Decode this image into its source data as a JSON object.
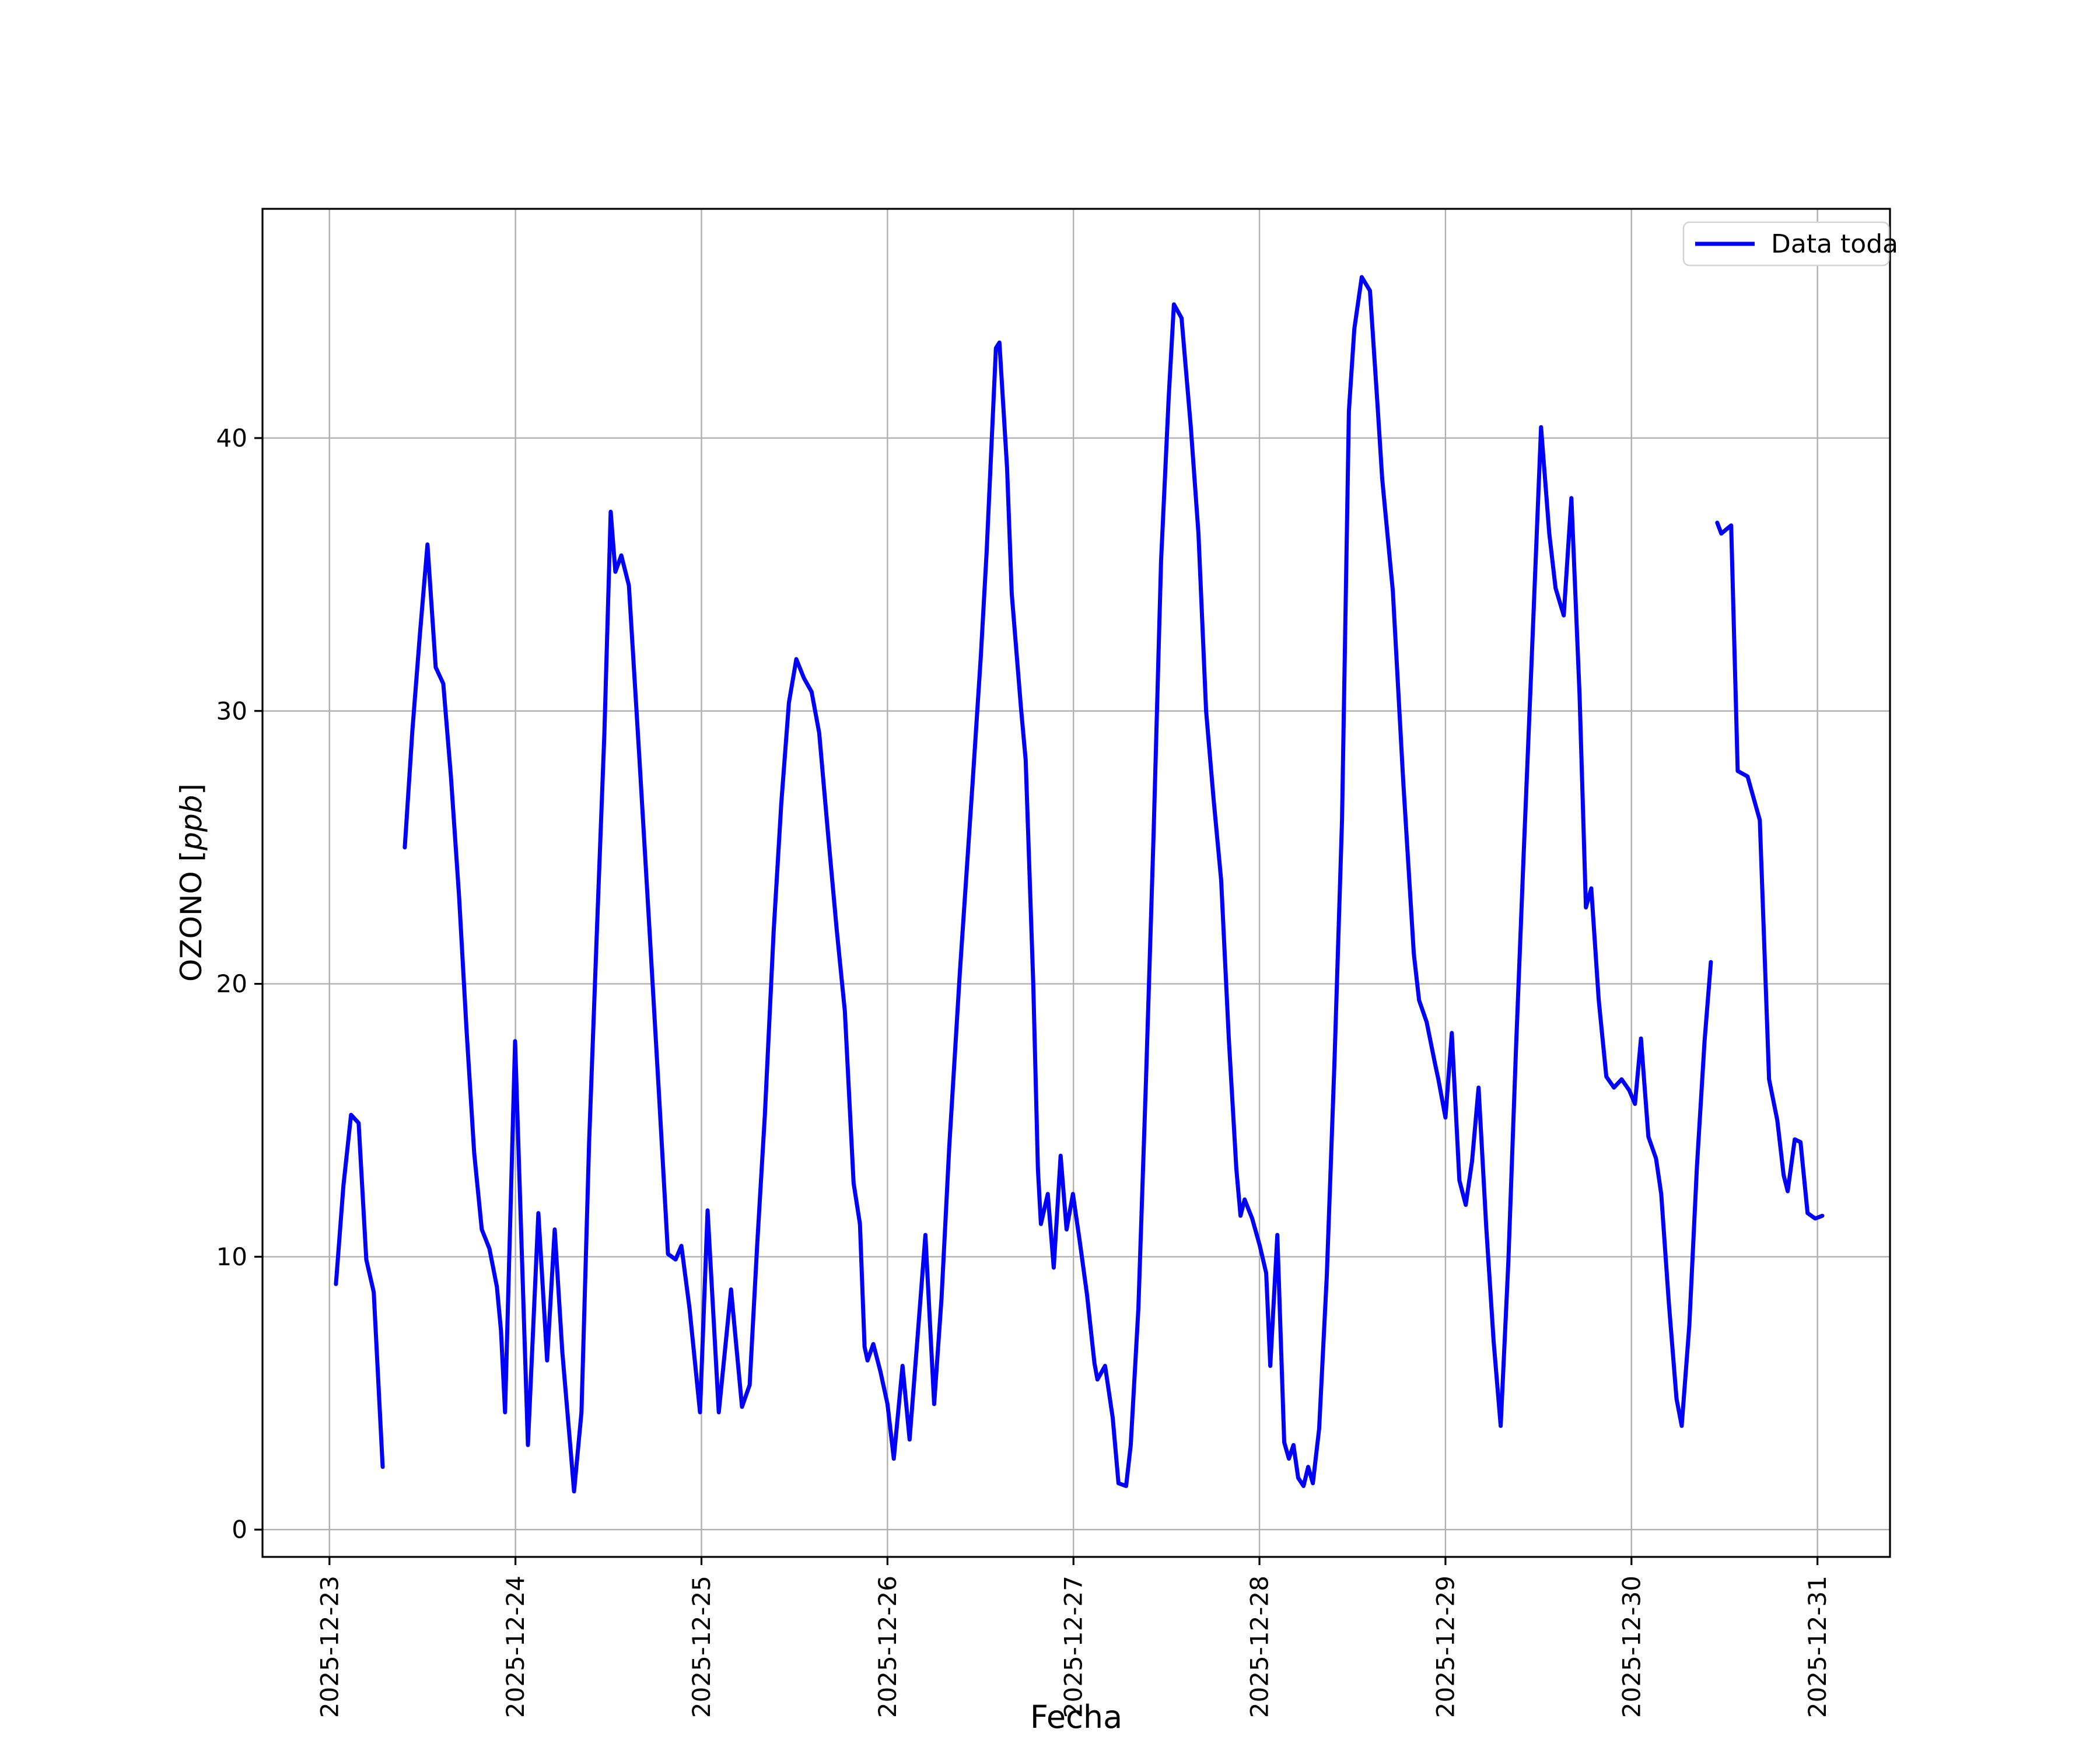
{
  "figure": {
    "background": "#ffffff",
    "legend": {
      "label": "Data toda",
      "line_color": "#0000ff"
    },
    "ylabel_prefix": "OZONO [",
    "ylabel_italic": "ppb",
    "ylabel_suffix": "]"
  },
  "chart_data": {
    "type": "line",
    "title": "",
    "xlabel": "Fecha",
    "ylabel": "OZONO [ppb]",
    "x_unit": "days since 2025-12-23 00:00",
    "xlim": [
      -0.36,
      8.39
    ],
    "ylim": [
      -1.0,
      48.4
    ],
    "grid": true,
    "grid_color": "#b0b0b0",
    "legend_position": "upper right",
    "x_ticks": [
      {
        "value": 0,
        "label": "2025-12-23"
      },
      {
        "value": 1,
        "label": "2025-12-24"
      },
      {
        "value": 2,
        "label": "2025-12-25"
      },
      {
        "value": 3,
        "label": "2025-12-26"
      },
      {
        "value": 4,
        "label": "2025-12-27"
      },
      {
        "value": 5,
        "label": "2025-12-28"
      },
      {
        "value": 6,
        "label": "2025-12-29"
      },
      {
        "value": 7,
        "label": "2025-12-30"
      },
      {
        "value": 8,
        "label": "2025-12-31"
      }
    ],
    "y_ticks": [
      0,
      10,
      20,
      30,
      40
    ],
    "series": [
      {
        "name": "Data toda",
        "color": "#0000ff",
        "line_width": 7,
        "segments": [
          [
            [
              0.035,
              9.0
            ],
            [
              0.075,
              12.6
            ],
            [
              0.116,
              15.2
            ],
            [
              0.157,
              14.9
            ],
            [
              0.198,
              9.9
            ],
            [
              0.238,
              8.7
            ],
            [
              0.286,
              2.3
            ]
          ],
          [
            [
              0.405,
              25.0
            ],
            [
              0.446,
              29.3
            ],
            [
              0.486,
              32.8
            ],
            [
              0.527,
              36.1
            ],
            [
              0.571,
              31.6
            ],
            [
              0.612,
              31.0
            ],
            [
              0.653,
              27.6
            ],
            [
              0.697,
              23.2
            ],
            [
              0.737,
              18.3
            ],
            [
              0.778,
              13.8
            ],
            [
              0.819,
              11.0
            ],
            [
              0.86,
              10.3
            ],
            [
              0.9,
              8.9
            ],
            [
              0.922,
              7.3
            ],
            [
              0.944,
              4.3
            ],
            [
              0.998,
              17.9
            ],
            [
              1.067,
              3.1
            ],
            [
              1.123,
              11.6
            ],
            [
              1.17,
              6.2
            ],
            [
              1.211,
              11.0
            ],
            [
              1.252,
              6.5
            ],
            [
              1.293,
              3.2
            ],
            [
              1.315,
              1.4
            ],
            [
              1.355,
              4.3
            ],
            [
              1.396,
              14.2
            ],
            [
              1.437,
              21.8
            ],
            [
              1.478,
              29.2
            ],
            [
              1.512,
              37.3
            ],
            [
              1.537,
              35.1
            ],
            [
              1.569,
              35.7
            ],
            [
              1.61,
              34.6
            ],
            [
              1.666,
              28.3
            ],
            [
              1.722,
              21.8
            ],
            [
              1.773,
              15.8
            ],
            [
              1.82,
              10.1
            ],
            [
              1.861,
              9.9
            ],
            [
              1.892,
              10.4
            ],
            [
              1.936,
              8.1
            ],
            [
              1.992,
              4.3
            ],
            [
              2.033,
              11.7
            ],
            [
              2.093,
              4.3
            ],
            [
              2.159,
              8.8
            ],
            [
              2.218,
              4.5
            ],
            [
              2.259,
              5.3
            ],
            [
              2.3,
              10.5
            ],
            [
              2.341,
              15.2
            ],
            [
              2.388,
              21.9
            ],
            [
              2.429,
              26.6
            ],
            [
              2.47,
              30.3
            ],
            [
              2.51,
              31.9
            ],
            [
              2.551,
              31.2
            ],
            [
              2.592,
              30.7
            ],
            [
              2.633,
              29.2
            ],
            [
              2.683,
              25.3
            ],
            [
              2.727,
              22.0
            ],
            [
              2.771,
              19.0
            ],
            [
              2.818,
              12.7
            ],
            [
              2.852,
              11.2
            ],
            [
              2.877,
              6.7
            ],
            [
              2.893,
              6.2
            ],
            [
              2.924,
              6.8
            ],
            [
              2.962,
              5.8
            ],
            [
              3.0,
              4.6
            ],
            [
              3.034,
              2.6
            ],
            [
              3.081,
              6.0
            ],
            [
              3.119,
              3.3
            ],
            [
              3.16,
              6.9
            ],
            [
              3.204,
              10.8
            ],
            [
              3.251,
              4.6
            ],
            [
              3.291,
              8.5
            ],
            [
              3.332,
              14.0
            ],
            [
              3.389,
              20.4
            ],
            [
              3.458,
              27.4
            ],
            [
              3.502,
              32.0
            ],
            [
              3.533,
              35.8
            ],
            [
              3.583,
              43.3
            ],
            [
              3.602,
              43.5
            ],
            [
              3.643,
              38.9
            ],
            [
              3.668,
              34.3
            ],
            [
              3.718,
              30.1
            ],
            [
              3.743,
              28.2
            ],
            [
              3.784,
              20.0
            ],
            [
              3.809,
              13.2
            ],
            [
              3.825,
              11.2
            ],
            [
              3.862,
              12.3
            ],
            [
              3.894,
              9.6
            ],
            [
              3.931,
              13.7
            ],
            [
              3.963,
              11.0
            ],
            [
              3.997,
              12.3
            ],
            [
              4.035,
              10.5
            ],
            [
              4.073,
              8.6
            ],
            [
              4.113,
              6.1
            ],
            [
              4.129,
              5.5
            ],
            [
              4.17,
              6.0
            ],
            [
              4.211,
              4.1
            ],
            [
              4.242,
              1.7
            ],
            [
              4.283,
              1.6
            ],
            [
              4.308,
              3.1
            ],
            [
              4.349,
              8.1
            ],
            [
              4.39,
              16.5
            ],
            [
              4.431,
              25.5
            ],
            [
              4.471,
              35.5
            ],
            [
              4.512,
              41.5
            ],
            [
              4.54,
              44.9
            ],
            [
              4.581,
              44.4
            ],
            [
              4.631,
              40.4
            ],
            [
              4.672,
              36.5
            ],
            [
              4.713,
              30.0
            ],
            [
              4.753,
              26.8
            ],
            [
              4.794,
              23.8
            ],
            [
              4.835,
              18.0
            ],
            [
              4.876,
              13.2
            ],
            [
              4.898,
              11.5
            ],
            [
              4.92,
              12.1
            ],
            [
              4.961,
              11.4
            ],
            [
              5.002,
              10.4
            ],
            [
              5.036,
              9.4
            ],
            [
              5.058,
              6.0
            ],
            [
              5.096,
              10.8
            ],
            [
              5.133,
              3.2
            ],
            [
              5.158,
              2.6
            ],
            [
              5.183,
              3.1
            ],
            [
              5.208,
              1.9
            ],
            [
              5.237,
              1.6
            ],
            [
              5.262,
              2.3
            ],
            [
              5.287,
              1.7
            ],
            [
              5.321,
              3.7
            ],
            [
              5.362,
              9.3
            ],
            [
              5.403,
              17.1
            ],
            [
              5.444,
              26.0
            ],
            [
              5.481,
              41.0
            ],
            [
              5.51,
              44.0
            ],
            [
              5.55,
              45.9
            ],
            [
              5.594,
              45.4
            ],
            [
              5.635,
              41.2
            ],
            [
              5.66,
              38.5
            ],
            [
              5.717,
              34.4
            ],
            [
              5.773,
              27.4
            ],
            [
              5.83,
              21.1
            ],
            [
              5.858,
              19.4
            ],
            [
              5.899,
              18.6
            ],
            [
              5.943,
              17.1
            ],
            [
              5.962,
              16.5
            ],
            [
              6.0,
              15.1
            ],
            [
              6.034,
              18.2
            ],
            [
              6.075,
              12.8
            ],
            [
              6.109,
              11.9
            ],
            [
              6.143,
              13.5
            ],
            [
              6.178,
              16.2
            ],
            [
              6.219,
              11.1
            ],
            [
              6.259,
              6.9
            ],
            [
              6.297,
              3.8
            ],
            [
              6.338,
              9.8
            ],
            [
              6.379,
              17.6
            ],
            [
              6.42,
              24.7
            ],
            [
              6.46,
              31.3
            ],
            [
              6.514,
              40.4
            ],
            [
              6.558,
              36.5
            ],
            [
              6.592,
              34.5
            ],
            [
              6.636,
              33.5
            ],
            [
              6.677,
              37.8
            ],
            [
              6.721,
              30.6
            ],
            [
              6.755,
              22.8
            ],
            [
              6.784,
              23.5
            ],
            [
              6.824,
              19.4
            ],
            [
              6.865,
              16.6
            ],
            [
              6.906,
              16.2
            ],
            [
              6.947,
              16.5
            ],
            [
              6.988,
              16.1
            ],
            [
              7.019,
              15.6
            ],
            [
              7.051,
              18.0
            ],
            [
              7.091,
              14.4
            ],
            [
              7.132,
              13.6
            ],
            [
              7.16,
              12.3
            ],
            [
              7.201,
              8.3
            ],
            [
              7.242,
              4.8
            ],
            [
              7.27,
              3.8
            ],
            [
              7.311,
              7.5
            ],
            [
              7.352,
              13.3
            ],
            [
              7.393,
              17.9
            ],
            [
              7.427,
              20.8
            ]
          ],
          [
            [
              7.461,
              36.9
            ],
            [
              7.483,
              36.5
            ],
            [
              7.518,
              36.7
            ],
            [
              7.536,
              36.8
            ],
            [
              7.571,
              27.8
            ],
            [
              7.624,
              27.6
            ],
            [
              7.69,
              26.0
            ],
            [
              7.74,
              16.5
            ],
            [
              7.784,
              15.0
            ],
            [
              7.818,
              13.0
            ],
            [
              7.84,
              12.4
            ],
            [
              7.878,
              14.3
            ],
            [
              7.909,
              14.2
            ],
            [
              7.947,
              11.6
            ],
            [
              7.988,
              11.4
            ],
            [
              8.026,
              11.5
            ]
          ]
        ]
      }
    ]
  }
}
